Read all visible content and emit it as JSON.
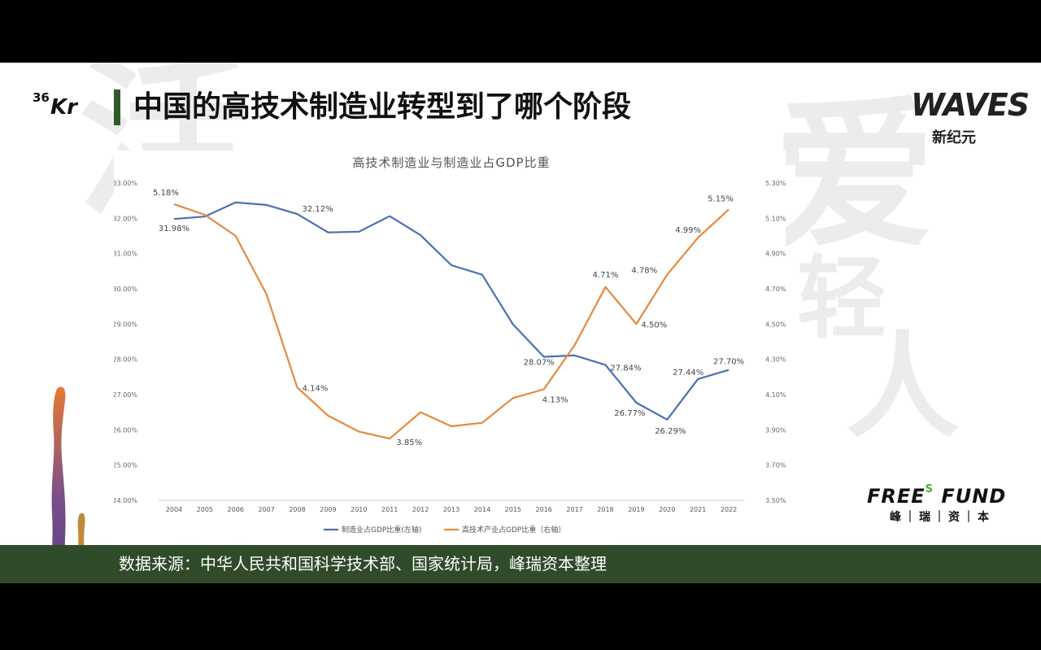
{
  "slide": {
    "title": "中国的高技术制造业转型到了哪个阶段",
    "source": "数据来源：中华人民共和国科学技术部、国家统计局，峰瑞资本整理",
    "background_glyphs": [
      "活",
      "爱",
      "轻",
      "人"
    ],
    "logos": {
      "kr_sup": "36",
      "kr_main": "Kr",
      "waves": "WAVES",
      "waves_sub": "新纪元",
      "free_fund_a": "FREE",
      "free_fund_s": "S",
      "free_fund_b": "FUND",
      "free_fund_sub": "峰｜瑞｜资｜本"
    }
  },
  "chart_data": {
    "type": "line",
    "title": "高技术制造业与制造业占GDP比重",
    "x": [
      "2004",
      "2005",
      "2006",
      "2007",
      "2008",
      "2009",
      "2010",
      "2011",
      "2012",
      "2013",
      "2014",
      "2015",
      "2016",
      "2017",
      "2018",
      "2019",
      "2020",
      "2021",
      "2022"
    ],
    "y_left": {
      "ylim": [
        24.0,
        33.0
      ],
      "ticks": [
        "24.00%",
        "25.00%",
        "26.00%",
        "27.00%",
        "28.00%",
        "29.00%",
        "30.00%",
        "31.00%",
        "32.00%",
        "33.00%"
      ]
    },
    "y_right": {
      "ylim": [
        3.5,
        5.3
      ],
      "ticks": [
        "3.50%",
        "3.70%",
        "3.90%",
        "4.10%",
        "4.30%",
        "4.50%",
        "4.70%",
        "4.90%",
        "5.10%",
        "5.30%"
      ]
    },
    "series": [
      {
        "name": "制造业占GDP比重(左轴)",
        "axis": "left",
        "color": "#4a6fb5",
        "values": [
          31.98,
          32.05,
          32.45,
          32.38,
          32.12,
          31.6,
          31.62,
          32.06,
          31.52,
          30.67,
          30.4,
          28.99,
          28.07,
          28.11,
          27.84,
          26.77,
          26.29,
          27.44,
          27.7
        ]
      },
      {
        "name": "高技术产业占GDP比重（右轴）",
        "axis": "right",
        "color": "#e38a3d",
        "values": [
          5.18,
          5.12,
          5.0,
          4.67,
          4.14,
          3.98,
          3.89,
          3.85,
          4.0,
          3.92,
          3.94,
          4.08,
          4.13,
          4.38,
          4.71,
          4.5,
          4.78,
          4.99,
          5.15
        ]
      }
    ],
    "data_labels": [
      {
        "series": 0,
        "index": 0,
        "text": "31.98%"
      },
      {
        "series": 0,
        "index": 4,
        "text": "32.12%"
      },
      {
        "series": 0,
        "index": 12,
        "text": "28.07%"
      },
      {
        "series": 0,
        "index": 14,
        "text": "27.84%"
      },
      {
        "series": 0,
        "index": 15,
        "text": "26.77%"
      },
      {
        "series": 0,
        "index": 16,
        "text": "26.29%"
      },
      {
        "series": 0,
        "index": 17,
        "text": "27.44%"
      },
      {
        "series": 0,
        "index": 18,
        "text": "27.70%"
      },
      {
        "series": 1,
        "index": 0,
        "text": "5.18%"
      },
      {
        "series": 1,
        "index": 4,
        "text": "4.14%"
      },
      {
        "series": 1,
        "index": 7,
        "text": "3.85%"
      },
      {
        "series": 1,
        "index": 12,
        "text": "4.13%"
      },
      {
        "series": 1,
        "index": 14,
        "text": "4.71%"
      },
      {
        "series": 1,
        "index": 15,
        "text": "4.50%"
      },
      {
        "series": 1,
        "index": 16,
        "text": "4.78%"
      },
      {
        "series": 1,
        "index": 17,
        "text": "4.99%"
      },
      {
        "series": 1,
        "index": 18,
        "text": "5.15%"
      }
    ],
    "legend_position": "bottom",
    "grid": false
  }
}
